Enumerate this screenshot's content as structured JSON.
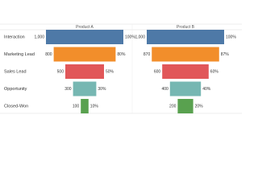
{
  "chart_data": {
    "type": "funnel",
    "categories": [
      "Interaction",
      "Marketing Lead",
      "Sales Lead",
      "Opportunity",
      "Closed-Won"
    ],
    "colors": [
      "#4e79a7",
      "#f28e2b",
      "#e15759",
      "#76b7b2",
      "#59a14f"
    ],
    "xlim": [
      0,
      1000
    ],
    "series": [
      {
        "name": "Product A",
        "values": [
          1000,
          800,
          500,
          300,
          100
        ],
        "value_labels": [
          "1,000",
          "800",
          "500",
          "300",
          "100"
        ],
        "shares": [
          100,
          80,
          50,
          30,
          10
        ],
        "share_labels": [
          "100%",
          "80%",
          "50%",
          "30%",
          "10%"
        ]
      },
      {
        "name": "Product B",
        "values": [
          1000,
          870,
          600,
          400,
          200
        ],
        "value_labels": [
          "1,000",
          "870",
          "600",
          "400",
          "200"
        ],
        "shares": [
          100,
          87,
          60,
          40,
          20
        ],
        "share_labels": [
          "100%",
          "87%",
          "60%",
          "40%",
          "20%"
        ]
      }
    ]
  }
}
